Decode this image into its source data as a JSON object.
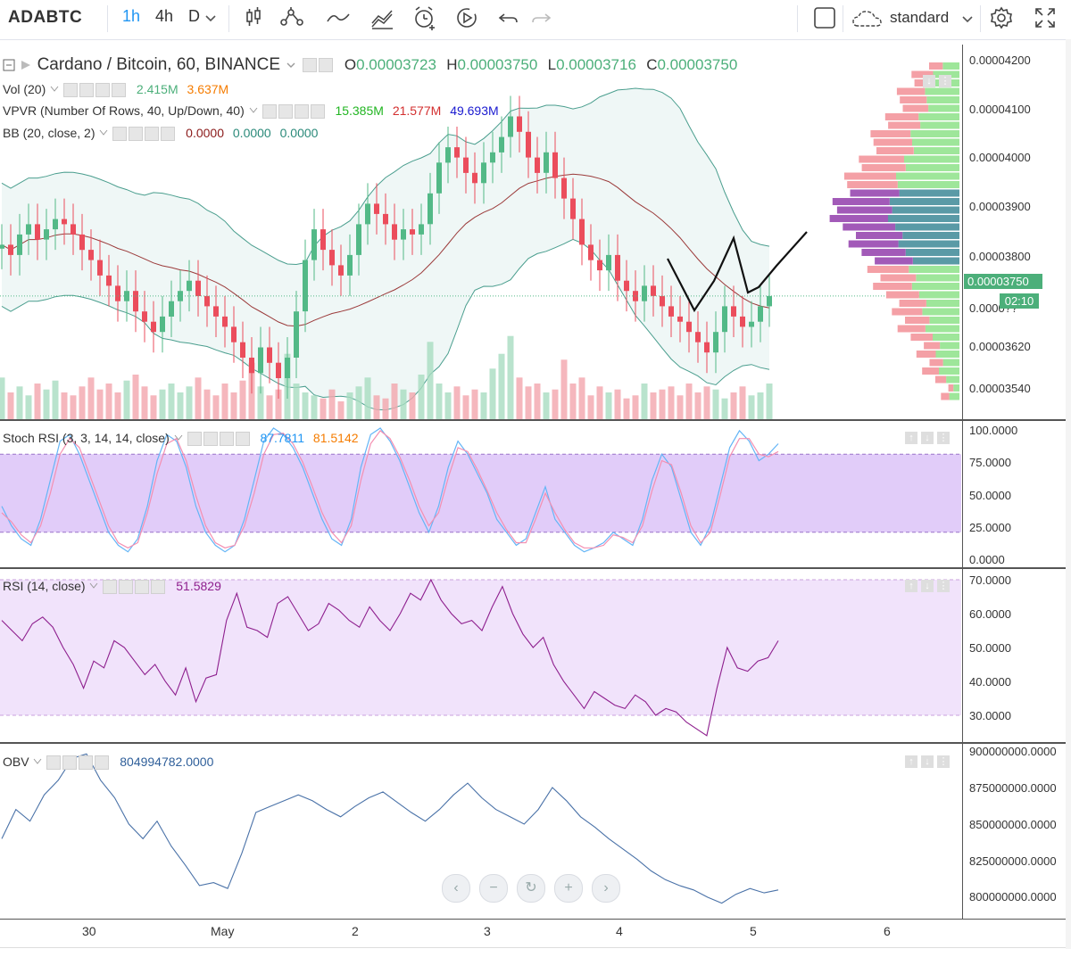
{
  "toolbar": {
    "symbol": "ADABTC",
    "intervals": [
      "1h",
      "4h",
      "D"
    ],
    "active_interval": "1h",
    "chart_style": "standard"
  },
  "legend": {
    "title": "Cardano / Bitcoin, 60, BINANCE",
    "o_label": "O",
    "o": "0.00003723",
    "h_label": "H",
    "h": "0.00003750",
    "l_label": "L",
    "l": "0.00003716",
    "c_label": "C",
    "c": "0.00003750",
    "vol_name": "Vol (20)",
    "vol_v1": "2.415M",
    "vol_v2": "3.637M",
    "vpvr_name": "VPVR (Number Of Rows, 40, Up/Down, 40)",
    "vpvr_v1": "15.385M",
    "vpvr_v2": "21.577M",
    "vpvr_v3": "49.693M",
    "bb_name": "BB (20, close, 2)",
    "bb_v1": "0.0000",
    "bb_v2": "0.0000",
    "bb_v3": "0.0000"
  },
  "price_axis": [
    "0.00004200",
    "0.00004100",
    "0.00004000",
    "0.00003900",
    "0.00003800",
    "0.00003620",
    "0.00003540"
  ],
  "current_price": "0.00003750",
  "partial_label": "0.0000??",
  "countdown": "02:10",
  "stoch": {
    "name": "Stoch RSI (3, 3, 14, 14, close)",
    "k": "87.7811",
    "d": "81.5142",
    "axis": [
      "100.0000",
      "75.0000",
      "50.0000",
      "25.0000",
      "0.0000"
    ]
  },
  "rsi": {
    "name": "RSI (14, close)",
    "value": "51.5829",
    "axis": [
      "70.0000",
      "60.0000",
      "50.0000",
      "40.0000",
      "30.0000"
    ]
  },
  "obv": {
    "name": "OBV",
    "value": "804994782.0000",
    "axis": [
      "900000000.0000",
      "875000000.0000",
      "850000000.0000",
      "825000000.0000",
      "800000000.0000"
    ]
  },
  "time_axis": [
    "30",
    "May",
    "2",
    "3",
    "4",
    "5",
    "6"
  ],
  "colors": {
    "up": "#53b987",
    "down": "#eb4d5c",
    "accent": "#2196f3",
    "bb": "#4a9e8e",
    "stoch_band": "#e1ccf9",
    "rsi_band": "#f1e3fb"
  },
  "chart_data": [
    {
      "type": "candlestick",
      "title": "Cardano / Bitcoin, 60, BINANCE",
      "ylim": [
        3.51e-05,
        4.24e-05
      ],
      "close": [
        3.85e-05,
        3.83e-05,
        3.87e-05,
        3.89e-05,
        3.86e-05,
        3.88e-05,
        3.9e-05,
        3.89e-05,
        3.87e-05,
        3.84e-05,
        3.82e-05,
        3.79e-05,
        3.77e-05,
        3.74e-05,
        3.76e-05,
        3.72e-05,
        3.7e-05,
        3.68e-05,
        3.71e-05,
        3.74e-05,
        3.76e-05,
        3.78e-05,
        3.75e-05,
        3.73e-05,
        3.71e-05,
        3.69e-05,
        3.66e-05,
        3.63e-05,
        3.6e-05,
        3.65e-05,
        3.62e-05,
        3.59e-05,
        3.63e-05,
        3.72e-05,
        3.82e-05,
        3.88e-05,
        3.84e-05,
        3.81e-05,
        3.79e-05,
        3.83e-05,
        3.89e-05,
        3.93e-05,
        3.91e-05,
        3.89e-05,
        3.86e-05,
        3.88e-05,
        3.87e-05,
        3.89e-05,
        3.95e-05,
        4.01e-05,
        4.04e-05,
        4.02e-05,
        3.99e-05,
        3.97e-05,
        4.01e-05,
        4.03e-05,
        4.06e-05,
        4.1e-05,
        4.07e-05,
        4.02e-05,
        3.99e-05,
        4.03e-05,
        3.98e-05,
        3.94e-05,
        3.9e-05,
        3.85e-05,
        3.82e-05,
        3.8e-05,
        3.83e-05,
        3.78e-05,
        3.76e-05,
        3.74e-05,
        3.77e-05,
        3.75e-05,
        3.73e-05,
        3.71e-05,
        3.7e-05,
        3.68e-05,
        3.66e-05,
        3.64e-05,
        3.68e-05,
        3.73e-05,
        3.71e-05,
        3.69e-05,
        3.7e-05,
        3.73e-05,
        3.75e-05
      ],
      "volume": [
        14,
        9,
        11,
        8,
        12,
        10,
        13,
        9,
        8,
        11,
        14,
        10,
        12,
        9,
        13,
        15,
        11,
        8,
        10,
        12,
        9,
        11,
        14,
        10,
        8,
        12,
        9,
        13,
        19,
        11,
        8,
        10,
        22,
        12,
        9,
        8,
        7,
        10,
        6,
        9,
        11,
        14,
        8,
        7,
        12,
        10,
        9,
        15,
        26,
        12,
        9,
        11,
        8,
        10,
        9,
        17,
        22,
        28,
        14,
        11,
        12,
        9,
        10,
        20,
        12,
        14,
        8,
        11,
        9,
        10,
        7,
        8,
        12,
        9,
        10,
        11,
        8,
        12,
        9,
        11,
        10,
        7,
        9,
        11,
        8,
        9,
        12
      ]
    },
    {
      "type": "line",
      "title": "Stoch RSI (3, 3, 14, 14, close)",
      "ylim": [
        0,
        100
      ],
      "series": [
        {
          "name": "K",
          "values": [
            40,
            25,
            15,
            10,
            30,
            60,
            90,
            95,
            80,
            60,
            40,
            20,
            10,
            5,
            15,
            40,
            75,
            95,
            90,
            70,
            40,
            20,
            10,
            5,
            10,
            30,
            60,
            90,
            100,
            95,
            85,
            70,
            50,
            30,
            15,
            10,
            30,
            70,
            95,
            100,
            90,
            75,
            55,
            35,
            20,
            40,
            70,
            90,
            80,
            65,
            50,
            30,
            20,
            10,
            15,
            35,
            55,
            30,
            20,
            10,
            5,
            8,
            12,
            20,
            15,
            10,
            30,
            60,
            80,
            70,
            45,
            20,
            10,
            25,
            55,
            85,
            98,
            90,
            75,
            80,
            88
          ]
        },
        {
          "name": "D",
          "values": [
            35,
            28,
            18,
            12,
            25,
            50,
            80,
            92,
            85,
            65,
            45,
            25,
            12,
            8,
            12,
            35,
            65,
            88,
            92,
            75,
            48,
            25,
            12,
            8,
            10,
            25,
            50,
            80,
            95,
            96,
            88,
            74,
            55,
            35,
            20,
            12,
            25,
            60,
            88,
            98,
            92,
            78,
            60,
            40,
            25,
            35,
            62,
            85,
            82,
            68,
            52,
            35,
            22,
            12,
            12,
            30,
            50,
            35,
            22,
            12,
            8,
            8,
            10,
            18,
            16,
            12,
            25,
            52,
            75,
            72,
            50,
            25,
            12,
            20,
            48,
            78,
            92,
            92,
            80,
            78,
            82
          ]
        }
      ]
    },
    {
      "type": "line",
      "title": "RSI (14, close)",
      "ylim": [
        25,
        72
      ],
      "series": [
        {
          "name": "RSI",
          "values": [
            58,
            55,
            52,
            57,
            59,
            56,
            50,
            45,
            38,
            46,
            44,
            52,
            50,
            46,
            42,
            45,
            40,
            36,
            44,
            34,
            41,
            42,
            58,
            66,
            56,
            55,
            53,
            63,
            65,
            60,
            55,
            57,
            63,
            61,
            58,
            56,
            62,
            58,
            55,
            60,
            66,
            64,
            70,
            64,
            60,
            57,
            58,
            55,
            62,
            68,
            60,
            54,
            50,
            53,
            45,
            40,
            36,
            32,
            37,
            35,
            33,
            32,
            36,
            34,
            30,
            32,
            31,
            28,
            26,
            24,
            38,
            50,
            44,
            43,
            46,
            47,
            52
          ]
        }
      ]
    },
    {
      "type": "line",
      "title": "OBV",
      "ylim": [
        790000000,
        905000000
      ],
      "series": [
        {
          "name": "OBV",
          "values": [
            840000000,
            860000000,
            852000000,
            870000000,
            880000000,
            895000000,
            898000000,
            880000000,
            868000000,
            850000000,
            840000000,
            852000000,
            835000000,
            822000000,
            808000000,
            810000000,
            806000000,
            830000000,
            858000000,
            862000000,
            866000000,
            870000000,
            866000000,
            860000000,
            855000000,
            862000000,
            868000000,
            872000000,
            865000000,
            858000000,
            852000000,
            860000000,
            870000000,
            878000000,
            868000000,
            860000000,
            855000000,
            850000000,
            860000000,
            875000000,
            866000000,
            855000000,
            848000000,
            840000000,
            833000000,
            826000000,
            818000000,
            812000000,
            808000000,
            805000000,
            800000000,
            796000000,
            802000000,
            806000000,
            803000000,
            805000000
          ]
        }
      ]
    }
  ]
}
